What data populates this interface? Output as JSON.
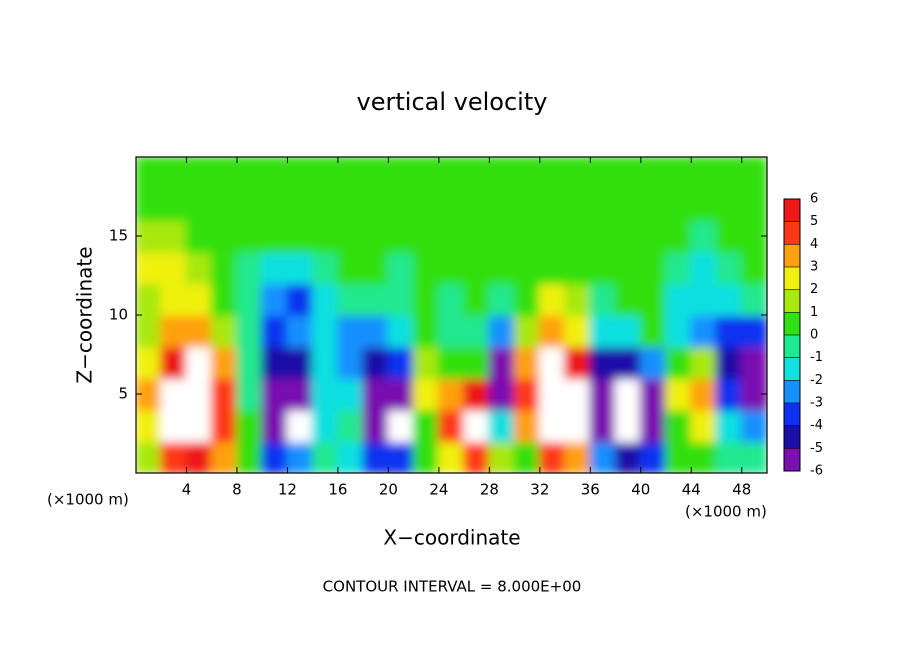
{
  "chart_data": {
    "type": "contourf",
    "title": "vertical velocity",
    "x_label": "X−coordinate",
    "y_label": "Z−coordinate",
    "x_unit_left": "(×1000 m)",
    "x_unit_right": "(×1000 m)",
    "note": "CONTOUR INTERVAL = 8.000E+00",
    "xlim": [
      0,
      50
    ],
    "ylim": [
      0,
      20
    ],
    "xticks": [
      4,
      8,
      12,
      16,
      20,
      24,
      28,
      32,
      36,
      40,
      44,
      48
    ],
    "yticks": [
      5,
      10,
      15
    ],
    "x": [
      1,
      3,
      5,
      7,
      9,
      11,
      13,
      15,
      17,
      19,
      21,
      23,
      25,
      27,
      29,
      31,
      33,
      35,
      37,
      39,
      41,
      43,
      45,
      47,
      49
    ],
    "y": [
      1,
      3,
      5,
      7,
      9,
      11,
      13,
      15,
      17,
      19
    ],
    "z": [
      [
        2,
        5,
        6,
        4,
        1,
        -3,
        -2,
        -0.5,
        -1,
        -3,
        -3,
        0.5,
        3,
        5,
        2,
        1,
        5,
        4,
        -2,
        -4,
        -3,
        0.5,
        1,
        0,
        0
      ],
      [
        3,
        7,
        8,
        5,
        0.5,
        -5,
        -7,
        -1,
        -0.5,
        -6,
        -7,
        1,
        5,
        8,
        -1,
        4,
        8,
        7,
        -5,
        -8,
        -6,
        1,
        3,
        -1,
        -2
      ],
      [
        4,
        8,
        8,
        5,
        0,
        -5,
        -6,
        -1,
        -1,
        -5,
        -5,
        3,
        4,
        6,
        -5,
        5,
        8,
        7,
        -5,
        -7,
        -5,
        3,
        4,
        -3,
        -6
      ],
      [
        3,
        6,
        7,
        4,
        0,
        -4,
        -4,
        -1,
        -2,
        -4,
        -3,
        2,
        1,
        0.5,
        -6,
        4,
        7,
        6,
        -4,
        -4,
        -2,
        1,
        2,
        -4,
        -5
      ],
      [
        2,
        4,
        4,
        2,
        0,
        -3,
        -2,
        -1.5,
        -2,
        -2,
        -1,
        0.5,
        0,
        0,
        -2,
        2,
        4,
        3,
        -1,
        -1,
        0.5,
        -1,
        -2,
        -3,
        -3
      ],
      [
        1.5,
        3,
        3,
        1,
        0,
        -2,
        -3,
        -1,
        -0.5,
        -0.5,
        0,
        0.5,
        0,
        0.3,
        0,
        1,
        3,
        1.5,
        0,
        0.3,
        0.5,
        -1,
        -1.5,
        -1,
        -0.5
      ],
      [
        3,
        3,
        1.5,
        0.5,
        0,
        -1,
        -1,
        -0.5,
        0.3,
        0.3,
        0,
        0.3,
        0.3,
        0.3,
        0.3,
        0.5,
        1,
        0.5,
        0.3,
        0.3,
        0.3,
        -0.5,
        -1,
        0,
        0.3
      ],
      [
        2,
        1.5,
        0.5,
        0.3,
        0.3,
        0.3,
        0.3,
        0.3,
        0.3,
        0.3,
        0.3,
        0.3,
        0.3,
        0.3,
        0.3,
        0.3,
        0.3,
        0.3,
        0.3,
        0.3,
        0.3,
        0.3,
        -0.5,
        0.3,
        0.3
      ],
      [
        0.5,
        0.5,
        0.3,
        0.3,
        0.3,
        0.3,
        0.3,
        0.3,
        0.3,
        0.3,
        0.3,
        0.3,
        0.3,
        0.3,
        0.3,
        0.3,
        0.3,
        0.3,
        0.3,
        0.3,
        0.3,
        0.3,
        0.3,
        0.3,
        0.3
      ],
      [
        0.3,
        0.3,
        0.3,
        0.3,
        0.3,
        0.3,
        0.3,
        0.3,
        0.3,
        0.3,
        0.3,
        0.3,
        0.3,
        0.3,
        0.3,
        0.3,
        0.3,
        0.3,
        0.3,
        0.3,
        0.3,
        0.3,
        0.3,
        0.3,
        0.3
      ]
    ],
    "colorbar_ticks": [
      -6,
      -5,
      -4,
      -3,
      -2,
      -1,
      0,
      1,
      2,
      3,
      4,
      5,
      6
    ],
    "colors": [
      "#7a10b0",
      "#1a10a8",
      "#1030f0",
      "#1890ff",
      "#10e0e0",
      "#20e890",
      "#30e010",
      "#a8e810",
      "#f0f010",
      "#ffa010",
      "#ff3818",
      "#ee1818",
      "#f8a0a0"
    ],
    "over_color": "#ffffff",
    "under_color": "#ffffff"
  }
}
